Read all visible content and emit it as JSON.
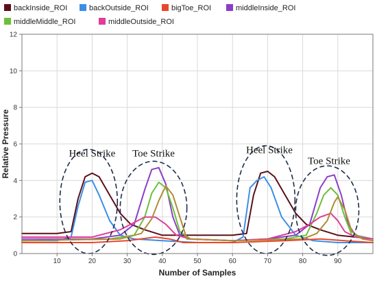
{
  "chart_data": {
    "type": "line",
    "xlabel": "Number of Samples",
    "ylabel": "Relative Pressure",
    "xlim": [
      0,
      100
    ],
    "ylim": [
      0,
      12
    ],
    "xticks": [
      10,
      20,
      30,
      40,
      50,
      60,
      70,
      80,
      90
    ],
    "yticks": [
      0,
      2,
      4,
      6,
      8,
      10,
      12
    ],
    "grid": true,
    "legend_position": "top",
    "series": [
      {
        "name": "backInside_ROI",
        "color": "#5a0f18",
        "points": [
          [
            0,
            1.1
          ],
          [
            10,
            1.1
          ],
          [
            14,
            1.2
          ],
          [
            16,
            3.0
          ],
          [
            18,
            4.2
          ],
          [
            20,
            4.4
          ],
          [
            22,
            4.2
          ],
          [
            25,
            3.2
          ],
          [
            28,
            2.2
          ],
          [
            31,
            1.6
          ],
          [
            35,
            1.3
          ],
          [
            40,
            1.0
          ],
          [
            45,
            1.0
          ],
          [
            50,
            1.0
          ],
          [
            55,
            1.0
          ],
          [
            60,
            1.0
          ],
          [
            64,
            1.1
          ],
          [
            66,
            3.2
          ],
          [
            68,
            4.4
          ],
          [
            70,
            4.5
          ],
          [
            72,
            4.2
          ],
          [
            75,
            3.2
          ],
          [
            78,
            2.2
          ],
          [
            81,
            1.6
          ],
          [
            85,
            1.3
          ],
          [
            90,
            1.0
          ],
          [
            100,
            0.8
          ]
        ]
      },
      {
        "name": "backOutside_ROI",
        "color": "#3a8ee6",
        "points": [
          [
            0,
            0.7
          ],
          [
            10,
            0.7
          ],
          [
            14,
            0.9
          ],
          [
            16,
            2.6
          ],
          [
            18,
            3.9
          ],
          [
            20,
            4.0
          ],
          [
            22,
            3.2
          ],
          [
            25,
            1.8
          ],
          [
            28,
            1.0
          ],
          [
            32,
            0.8
          ],
          [
            40,
            0.7
          ],
          [
            50,
            0.6
          ],
          [
            60,
            0.6
          ],
          [
            63,
            0.9
          ],
          [
            65,
            3.6
          ],
          [
            67,
            4.0
          ],
          [
            69,
            4.2
          ],
          [
            71,
            3.6
          ],
          [
            74,
            2.0
          ],
          [
            78,
            1.0
          ],
          [
            83,
            0.7
          ],
          [
            90,
            0.6
          ],
          [
            100,
            0.6
          ]
        ]
      },
      {
        "name": "bigToe_ROI",
        "color": "#e8472c",
        "points": [
          [
            0,
            0.6
          ],
          [
            20,
            0.6
          ],
          [
            30,
            0.7
          ],
          [
            38,
            0.9
          ],
          [
            42,
            0.8
          ],
          [
            46,
            0.6
          ],
          [
            60,
            0.6
          ],
          [
            75,
            0.7
          ],
          [
            85,
            0.8
          ],
          [
            92,
            0.7
          ],
          [
            100,
            0.6
          ]
        ]
      },
      {
        "name": "middleInside_ROI",
        "color": "#8a3ec8",
        "points": [
          [
            0,
            0.8
          ],
          [
            20,
            0.8
          ],
          [
            28,
            1.0
          ],
          [
            32,
            1.6
          ],
          [
            35,
            3.5
          ],
          [
            37,
            4.6
          ],
          [
            39,
            4.7
          ],
          [
            41,
            3.8
          ],
          [
            43,
            2.0
          ],
          [
            45,
            1.0
          ],
          [
            48,
            0.8
          ],
          [
            60,
            0.7
          ],
          [
            70,
            0.8
          ],
          [
            78,
            1.0
          ],
          [
            82,
            1.6
          ],
          [
            85,
            3.6
          ],
          [
            87,
            4.2
          ],
          [
            89,
            4.3
          ],
          [
            91,
            3.2
          ],
          [
            93,
            1.6
          ],
          [
            95,
            1.0
          ],
          [
            100,
            0.8
          ]
        ]
      },
      {
        "name": "middleMiddle_ROI",
        "color": "#6cbf3a",
        "points": [
          [
            0,
            0.7
          ],
          [
            25,
            0.8
          ],
          [
            32,
            1.0
          ],
          [
            35,
            2.0
          ],
          [
            37,
            3.3
          ],
          [
            39,
            3.9
          ],
          [
            41,
            3.6
          ],
          [
            43,
            2.5
          ],
          [
            45,
            1.2
          ],
          [
            48,
            0.8
          ],
          [
            60,
            0.7
          ],
          [
            75,
            0.8
          ],
          [
            81,
            1.0
          ],
          [
            84,
            2.2
          ],
          [
            86,
            3.2
          ],
          [
            88,
            3.6
          ],
          [
            90,
            3.2
          ],
          [
            92,
            2.0
          ],
          [
            94,
            1.0
          ],
          [
            100,
            0.8
          ]
        ]
      },
      {
        "name": "middleOutside_ROI",
        "color": "#e03c9a",
        "points": [
          [
            0,
            0.9
          ],
          [
            20,
            0.9
          ],
          [
            28,
            1.3
          ],
          [
            32,
            1.7
          ],
          [
            35,
            2.0
          ],
          [
            38,
            2.0
          ],
          [
            41,
            1.6
          ],
          [
            44,
            1.0
          ],
          [
            48,
            0.8
          ],
          [
            60,
            0.7
          ],
          [
            70,
            0.8
          ],
          [
            78,
            1.2
          ],
          [
            82,
            1.6
          ],
          [
            85,
            2.0
          ],
          [
            88,
            2.2
          ],
          [
            90,
            1.8
          ],
          [
            92,
            1.2
          ],
          [
            95,
            0.9
          ],
          [
            100,
            0.8
          ]
        ]
      },
      {
        "name": "",
        "color": "#b08a35",
        "points": [
          [
            0,
            0.7
          ],
          [
            28,
            0.8
          ],
          [
            34,
            1.1
          ],
          [
            37,
            1.9
          ],
          [
            39,
            2.9
          ],
          [
            41,
            3.7
          ],
          [
            43,
            3.2
          ],
          [
            45,
            2.0
          ],
          [
            47,
            0.8
          ],
          [
            60,
            0.7
          ],
          [
            80,
            0.8
          ],
          [
            84,
            1.1
          ],
          [
            87,
            1.8
          ],
          [
            89,
            2.8
          ],
          [
            90,
            3.1
          ],
          [
            92,
            2.4
          ],
          [
            94,
            1.2
          ],
          [
            97,
            0.8
          ],
          [
            100,
            0.7
          ]
        ]
      }
    ],
    "annotations": [
      {
        "text": "Heel Strike",
        "x": 20,
        "y": 5.3,
        "ellipse": {
          "cx": 19,
          "cy": 2.85,
          "rx": 8.2,
          "ry": 2.85
        }
      },
      {
        "text": "Toe Strike",
        "x": 37.5,
        "y": 5.3,
        "ellipse": {
          "cx": 37.5,
          "cy": 2.5,
          "rx": 9.5,
          "ry": 2.55
        }
      },
      {
        "text": "Heel Strike",
        "x": 70.5,
        "y": 5.5,
        "ellipse": {
          "cx": 69.5,
          "cy": 2.95,
          "rx": 8.3,
          "ry": 2.95
        }
      },
      {
        "text": "Toe Strike",
        "x": 87.5,
        "y": 4.9,
        "ellipse": {
          "cx": 87,
          "cy": 2.35,
          "rx": 9,
          "ry": 2.45
        }
      }
    ]
  }
}
